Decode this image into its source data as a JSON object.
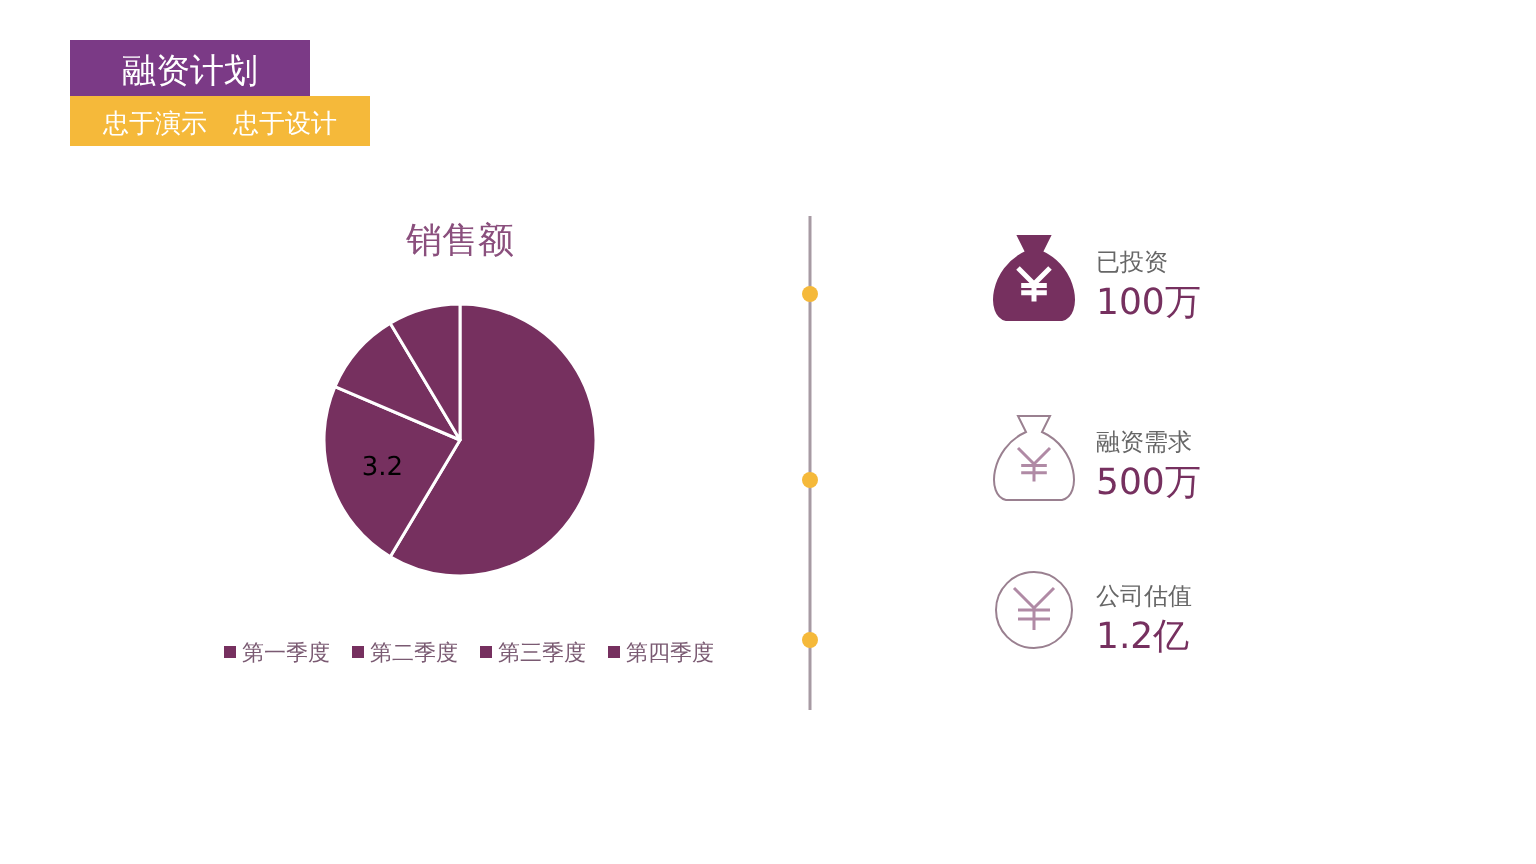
{
  "chart_data": [
    {
      "type": "other",
      "annotations": [
        "融资计划",
        "忠于演示　忠于设计"
      ]
    },
    {
      "type": "pie",
      "title": "销售额",
      "categories": [
        "第一季度",
        "第二季度",
        "第三季度",
        "第四季度"
      ],
      "values": [
        8.2,
        3.2,
        1.4,
        1.2
      ],
      "value_labels": [
        null,
        "3.2",
        null,
        null
      ],
      "colors": [
        "#76305f",
        "#76305f",
        "#76305f",
        "#76305f"
      ],
      "legend": "bottom"
    },
    {
      "type": "other",
      "annotations": [
        "已投资",
        "100万",
        "融资需求",
        "500万",
        "公司估值",
        "1.2亿"
      ]
    }
  ]
}
